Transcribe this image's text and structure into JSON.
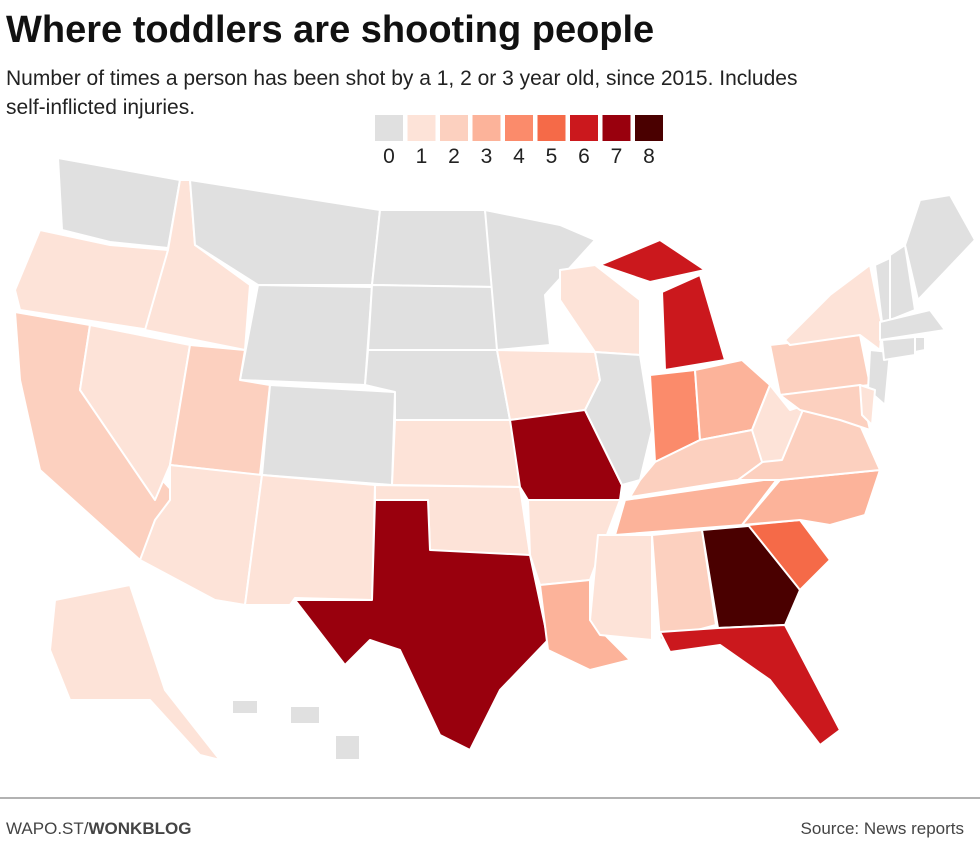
{
  "chart_data": {
    "type": "choropleth",
    "title": "Where toddlers are shooting people",
    "subtitle_line1": "Number of times a person has been shot by a 1, 2 or 3 year old, since 2015. Includes",
    "subtitle_line2": "self-inflicted injuries.",
    "legend": {
      "values": [
        0,
        1,
        2,
        3,
        4,
        5,
        6,
        7,
        8
      ],
      "colors": [
        "#e0e0e0",
        "#fde3d8",
        "#fcd0bf",
        "#fcb39a",
        "#fb8b6b",
        "#f56a48",
        "#cb181d",
        "#99000d",
        "#4a0000"
      ]
    },
    "values": [
      0,
      1,
      2,
      1,
      1,
      0,
      0,
      2,
      0,
      1,
      1,
      0,
      0,
      0,
      1,
      1,
      7,
      0,
      1,
      7,
      1,
      3,
      1,
      0,
      6,
      4,
      3,
      2,
      3,
      1,
      2,
      8,
      6,
      5,
      3,
      2,
      1,
      2,
      1,
      0,
      2,
      1,
      0,
      0,
      0,
      0,
      0,
      0,
      1,
      0
    ],
    "footer_left": "WAPO.ST/",
    "footer_brand": "WONKBLOG",
    "source": "Source: News reports"
  }
}
